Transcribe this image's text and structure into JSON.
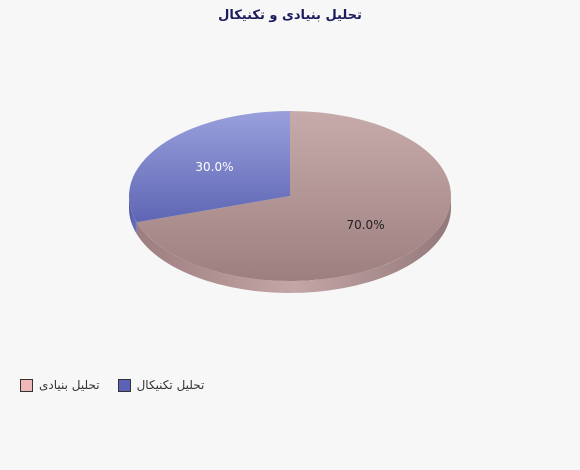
{
  "chart_data": {
    "type": "pie",
    "title": "تحلیل بنیادی و تکنیکال",
    "slices": [
      {
        "name": "تحلیل بنیادی",
        "value": 70.0,
        "label": "70.0%",
        "color": "#b89c9c",
        "legend_color": "#f0b8b8"
      },
      {
        "name": "تحلیل تکنیکال",
        "value": 30.0,
        "label": "30.0%",
        "color": "#7f86c9",
        "legend_color": "#5b62b8"
      }
    ],
    "legend_placement": "bottom-left",
    "three_d": true
  }
}
